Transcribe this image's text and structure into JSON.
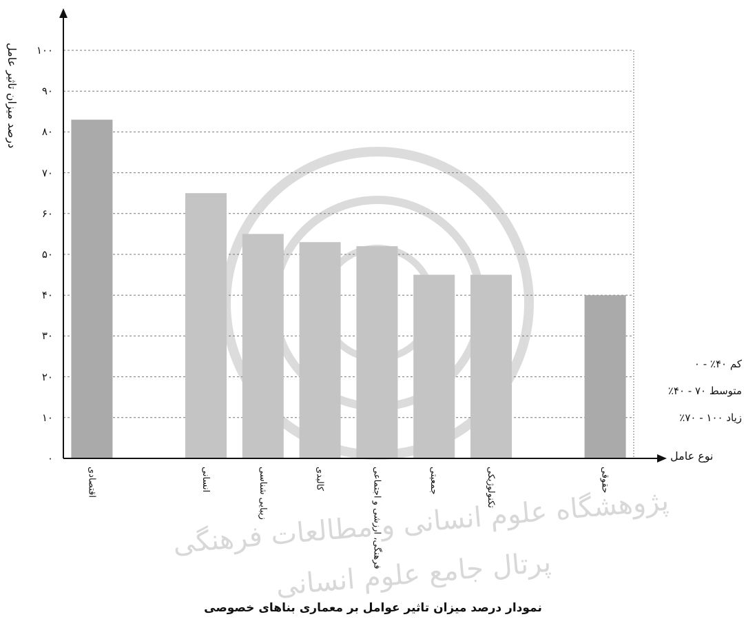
{
  "chart_data": {
    "type": "bar",
    "title": "نمودار درصد میزان تاثیر عوامل بر معماری بناهای خصوصی",
    "ylabel": "درصد میزان تاثیر عامل",
    "xlabel": "نوع عامل",
    "ylim": [
      0,
      100
    ],
    "yticks": [
      "۰",
      "۱۰",
      "۲۰",
      "۳۰",
      "۴۰",
      "۵۰",
      "۶۰",
      "۷۰",
      "۸۰",
      "۹۰",
      "۱۰۰"
    ],
    "grid": true,
    "categories": [
      "اقتصادی",
      "",
      "انسانی",
      "زیبایی شناسی",
      "کالبدی",
      "فرهنگی، ارزشی و اجتماعی",
      "جمعیتی",
      "تکنولوژیکی",
      "",
      "حقوقی"
    ],
    "values": [
      83,
      null,
      65,
      55,
      53,
      52,
      45,
      45,
      null,
      40
    ],
    "colors": [
      "#aaaaaa",
      null,
      "#c4c4c4",
      "#c4c4c4",
      "#c4c4c4",
      "#c4c4c4",
      "#c4c4c4",
      "#c4c4c4",
      null,
      "#aaaaaa"
    ],
    "legend": [
      {
        "label": "کم ۴۰٪ - ۰"
      },
      {
        "label": "متوسط ۷۰ - ۴۰٪"
      },
      {
        "label": "زیاد ۱۰۰ - ۷۰٪"
      }
    ],
    "legend_position": "right"
  },
  "watermark": {
    "line1": "پژوهشگاه علوم انسانی و مطالعات فرهنگی",
    "line2": "پرتال جامع علوم انسانی"
  }
}
